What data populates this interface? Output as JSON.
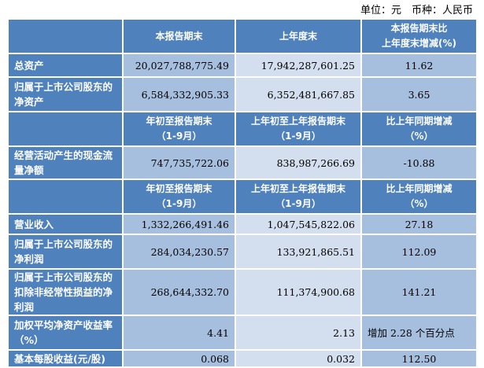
{
  "unit_line": "单位：元　币种：人民币",
  "header1": [
    "",
    "本报告期末",
    "上年度末",
    "本报告期末比\n上年度末增减(%)"
  ],
  "rows1": [
    {
      "label": "总资产",
      "v": [
        "20,027,788,775.49",
        "17,942,287,601.25",
        "11.62"
      ]
    },
    {
      "label": "归属于上市公司股东的净资产",
      "v": [
        "6,584,332,905.33",
        "6,352,481,667.85",
        "3.65"
      ]
    }
  ],
  "header2": [
    "",
    "年初至报告期末\n（1-9月）",
    "上年初至上年报告期末\n（1-9月）",
    "比上年同期增减\n（%）"
  ],
  "rows2": [
    {
      "label": "经营活动产生的现金流量净额",
      "v": [
        "747,735,722.06",
        "838,987,266.69",
        "-10.88"
      ]
    }
  ],
  "header3": [
    "",
    "年初至报告期末\n（1-9月）",
    "上年初至上年报告期末\n（1-9月）",
    "比上年同期增减\n（%）"
  ],
  "rows3": [
    {
      "label": "营业收入",
      "v": [
        "1,332,266,491.46",
        "1,047,545,822.06",
        "27.18"
      ]
    },
    {
      "label": "归属于上市公司股东的净利润",
      "v": [
        "284,034,230.57",
        "133,921,865.51",
        "112.09"
      ]
    },
    {
      "label": "归属于上市公司股东的扣除非经常性损益的净利润",
      "v": [
        "268,644,332.70",
        "111,374,900.68",
        "141.21"
      ]
    },
    {
      "label": "加权平均净资产收益率（%）",
      "v": [
        "4.41",
        "2.13",
        "增加 2.28 个百分点"
      ]
    },
    {
      "label": "基本每股收益(元/股)",
      "v": [
        "0.068",
        "0.032",
        "112.50"
      ]
    }
  ],
  "colors": {
    "header": "#4f81bd",
    "cell_dark": "#a7bfde",
    "cell_light": "#d3dfee"
  }
}
